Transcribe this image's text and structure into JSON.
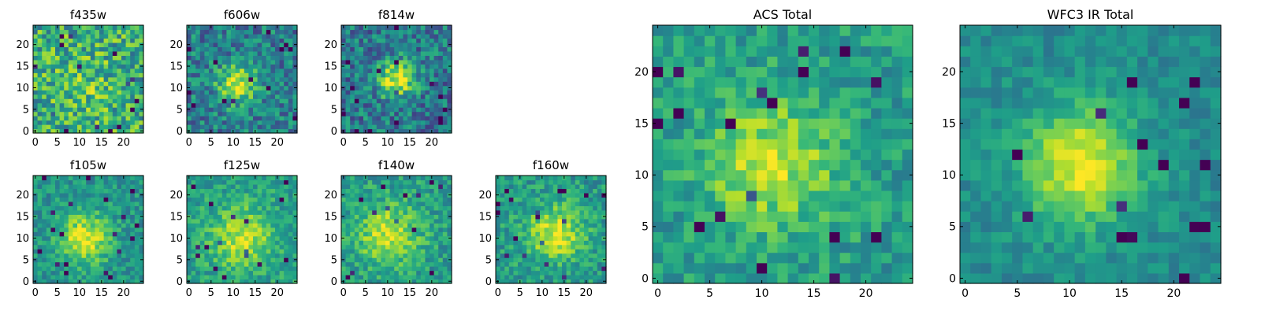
{
  "chart_data": [
    {
      "type": "heatmap",
      "title": "f435w",
      "xlim": [
        0,
        24
      ],
      "ylim": [
        0,
        24
      ],
      "x_ticks": [
        0,
        5,
        10,
        15,
        20
      ],
      "y_ticks": [
        0,
        5,
        10,
        15,
        20
      ],
      "grid": false,
      "legend": "none",
      "colormap": "viridis",
      "values": []
    },
    {
      "type": "heatmap",
      "title": "f606w",
      "xlim": [
        0,
        24
      ],
      "ylim": [
        0,
        24
      ],
      "x_ticks": [
        0,
        5,
        10,
        15,
        20
      ],
      "y_ticks": [
        0,
        5,
        10,
        15,
        20
      ],
      "grid": false,
      "legend": "none",
      "colormap": "viridis",
      "values": []
    },
    {
      "type": "heatmap",
      "title": "f814w",
      "xlim": [
        0,
        24
      ],
      "ylim": [
        0,
        24
      ],
      "x_ticks": [
        0,
        5,
        10,
        15,
        20
      ],
      "y_ticks": [
        0,
        5,
        10,
        15,
        20
      ],
      "grid": false,
      "legend": "none",
      "colormap": "viridis",
      "values": []
    },
    {
      "type": "heatmap",
      "title": "f105w",
      "xlim": [
        0,
        24
      ],
      "ylim": [
        0,
        24
      ],
      "x_ticks": [
        0,
        5,
        10,
        15,
        20
      ],
      "y_ticks": [
        0,
        5,
        10,
        15,
        20
      ],
      "grid": false,
      "legend": "none",
      "colormap": "viridis",
      "values": []
    },
    {
      "type": "heatmap",
      "title": "f125w",
      "xlim": [
        0,
        24
      ],
      "ylim": [
        0,
        24
      ],
      "x_ticks": [
        0,
        5,
        10,
        15,
        20
      ],
      "y_ticks": [
        0,
        5,
        10,
        15,
        20
      ],
      "grid": false,
      "legend": "none",
      "colormap": "viridis",
      "values": []
    },
    {
      "type": "heatmap",
      "title": "f140w",
      "xlim": [
        0,
        24
      ],
      "ylim": [
        0,
        24
      ],
      "x_ticks": [
        0,
        5,
        10,
        15,
        20
      ],
      "y_ticks": [
        0,
        5,
        10,
        15,
        20
      ],
      "grid": false,
      "legend": "none",
      "colormap": "viridis",
      "values": []
    },
    {
      "type": "heatmap",
      "title": "f160w",
      "xlim": [
        0,
        24
      ],
      "ylim": [
        0,
        24
      ],
      "x_ticks": [
        0,
        5,
        10,
        15,
        20
      ],
      "y_ticks": [
        0,
        5,
        10,
        15,
        20
      ],
      "grid": false,
      "legend": "none",
      "colormap": "viridis",
      "values": []
    },
    {
      "type": "heatmap",
      "title": "ACS Total",
      "xlim": [
        0,
        24
      ],
      "ylim": [
        0,
        24
      ],
      "x_ticks": [
        0,
        5,
        10,
        15,
        20
      ],
      "y_ticks": [
        0,
        5,
        10,
        15,
        20
      ],
      "grid": false,
      "legend": "none",
      "colormap": "viridis",
      "values": []
    },
    {
      "type": "heatmap",
      "title": "WFC3 IR Total",
      "xlim": [
        0,
        24
      ],
      "ylim": [
        0,
        24
      ],
      "x_ticks": [
        0,
        5,
        10,
        15,
        20
      ],
      "y_ticks": [
        0,
        5,
        10,
        15,
        20
      ],
      "grid": false,
      "legend": "none",
      "colormap": "viridis",
      "values": []
    }
  ]
}
